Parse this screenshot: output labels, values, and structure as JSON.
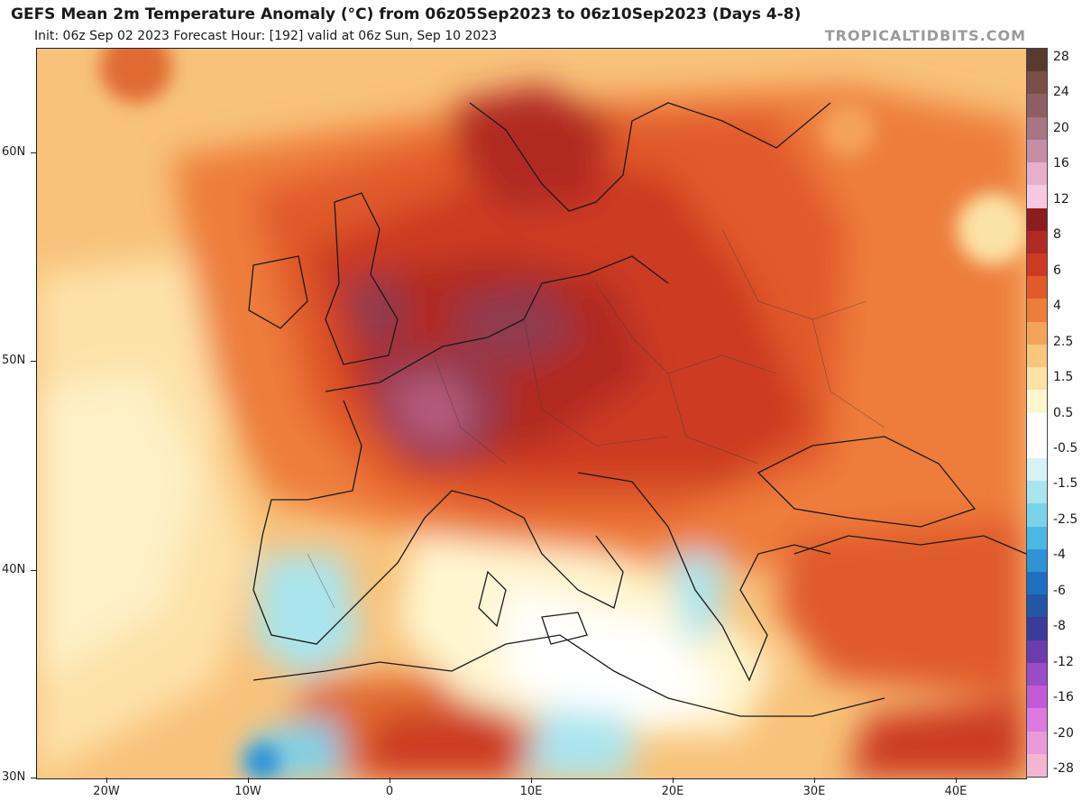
{
  "header": {
    "title": "GEFS Mean 2m Temperature Anomaly (°C) from 06z05Sep2023 to 06z10Sep2023 (Days 4-8)",
    "subtitle": "Init: 06z Sep 02 2023   Forecast Hour: [192]   valid at 06z Sun, Sep 10 2023",
    "watermark": "TROPICALTIDBITS.COM"
  },
  "axes": {
    "lat_labels": [
      "60N",
      "50N",
      "40N",
      "30N"
    ],
    "lon_labels": [
      "20W",
      "10W",
      "0",
      "10E",
      "20E",
      "30E",
      "40E"
    ]
  },
  "legend": {
    "labels": [
      "28",
      "24",
      "20",
      "16",
      "12",
      "8",
      "6",
      "4",
      "2.5",
      "1.5",
      "0.5",
      "-0.5",
      "-1.5",
      "-2.5",
      "-4",
      "-6",
      "-8",
      "-12",
      "-16",
      "-20",
      "-28"
    ],
    "colors": [
      "#5a3a30",
      "#7a4e48",
      "#8f5e62",
      "#a87582",
      "#c48fa6",
      "#e6b0cc",
      "#f7c8e4",
      "#8d1d1d",
      "#b12a22",
      "#cc3a22",
      "#e05a2a",
      "#ee7d3a",
      "#f4a35a",
      "#f8c67c",
      "#fbe3a6",
      "#fff6d0",
      "#ffffff",
      "#ffffff",
      "#d6f2f6",
      "#a9e5ef",
      "#7ad2ea",
      "#4bb7e3",
      "#2f93d5",
      "#1f6fc0",
      "#2456a8",
      "#3a3c9c",
      "#6a3cb0",
      "#9a4cc8",
      "#c25ad8",
      "#dc7ae0",
      "#ea9ad8",
      "#f0b6d2"
    ],
    "label_slots": [
      0,
      1,
      2,
      3,
      4,
      5,
      6,
      7,
      8,
      9,
      10,
      11,
      12,
      13,
      14,
      15,
      16,
      17,
      18,
      19,
      20
    ]
  },
  "map": {
    "region": "Europe / Mediterranean",
    "colors": {
      "ocean_base": "#f8c27a",
      "warm_light": "#f4a35a",
      "warm_mid": "#e06a30",
      "warm_strong": "#cc3a22",
      "warm_deep": "#b02a22",
      "hot_purple": "#8f3a50",
      "hot_pink": "#b45a7a",
      "neutral": "#ffffff",
      "cool_light": "#a9e5ef",
      "cool_mid": "#4bb7e3",
      "cool_deep": "#1f6fc0",
      "pale": "#fde7b0",
      "border": "#1a1a1a"
    }
  }
}
